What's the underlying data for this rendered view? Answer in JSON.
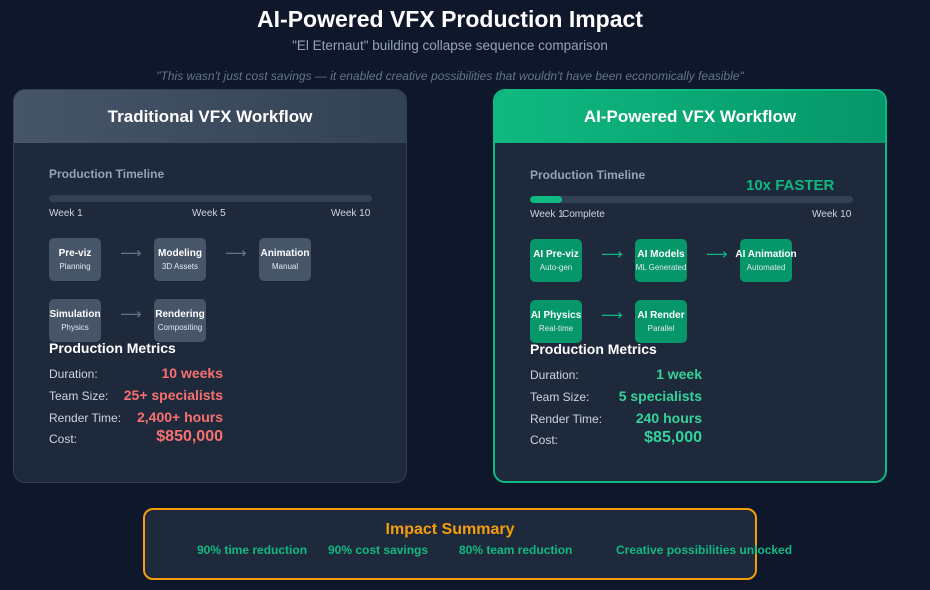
{
  "header": {
    "title": "AI-Powered VFX Production Impact",
    "subtitle": "\"El Eternaut\" building collapse sequence comparison",
    "quote": "\"This wasn't just cost savings — it enabled creative possibilities that wouldn't have been economically feasible\""
  },
  "traditional": {
    "title": "Traditional VFX Workflow",
    "timeline_label": "Production Timeline",
    "progress_fraction": 0,
    "ticks": [
      "Week 1",
      "Week 5",
      "Week 10"
    ],
    "steps": [
      {
        "name": "Pre-viz",
        "sub": "Planning"
      },
      {
        "name": "Modeling",
        "sub": "3D Assets"
      },
      {
        "name": "Animation",
        "sub": "Manual"
      },
      {
        "name": "Simulation",
        "sub": "Physics"
      },
      {
        "name": "Rendering",
        "sub": "Compositing"
      }
    ],
    "metrics_title": "Production Metrics",
    "metrics": [
      {
        "label": "Duration:",
        "value": "10 weeks"
      },
      {
        "label": "Team Size:",
        "value": "25+ specialists"
      },
      {
        "label": "Render Time:",
        "value": "2,400+ hours"
      },
      {
        "label": "Cost:",
        "value": "$850,000"
      }
    ]
  },
  "ai": {
    "title": "AI-Powered VFX Workflow",
    "timeline_label": "Production Timeline",
    "progress_fraction": 0.1,
    "badge": "10x FASTER",
    "ticks": [
      "Week 1",
      "Complete",
      "Week 10"
    ],
    "steps": [
      {
        "name": "AI Pre-viz",
        "sub": "Auto-gen"
      },
      {
        "name": "AI Models",
        "sub": "ML Generated"
      },
      {
        "name": "AI Animation",
        "sub": "Automated"
      },
      {
        "name": "AI Physics",
        "sub": "Real-time"
      },
      {
        "name": "AI Render",
        "sub": "Parallel"
      }
    ],
    "metrics_title": "Production Metrics",
    "metrics": [
      {
        "label": "Duration:",
        "value": "1 week"
      },
      {
        "label": "Team Size:",
        "value": "5 specialists"
      },
      {
        "label": "Render Time:",
        "value": "240 hours"
      },
      {
        "label": "Cost:",
        "value": "$85,000"
      }
    ]
  },
  "impact": {
    "title": "Impact Summary",
    "items": [
      "90% time reduction",
      "90% cost savings",
      "80% team reduction",
      "Creative possibilities unlocked"
    ]
  },
  "colors": {
    "background": "#0f172a",
    "traditional_accent": "#f87171",
    "ai_accent": "#10b981",
    "impact_accent": "#f59e0b"
  },
  "icons": {
    "step_arrow": "arrow-right-icon"
  }
}
